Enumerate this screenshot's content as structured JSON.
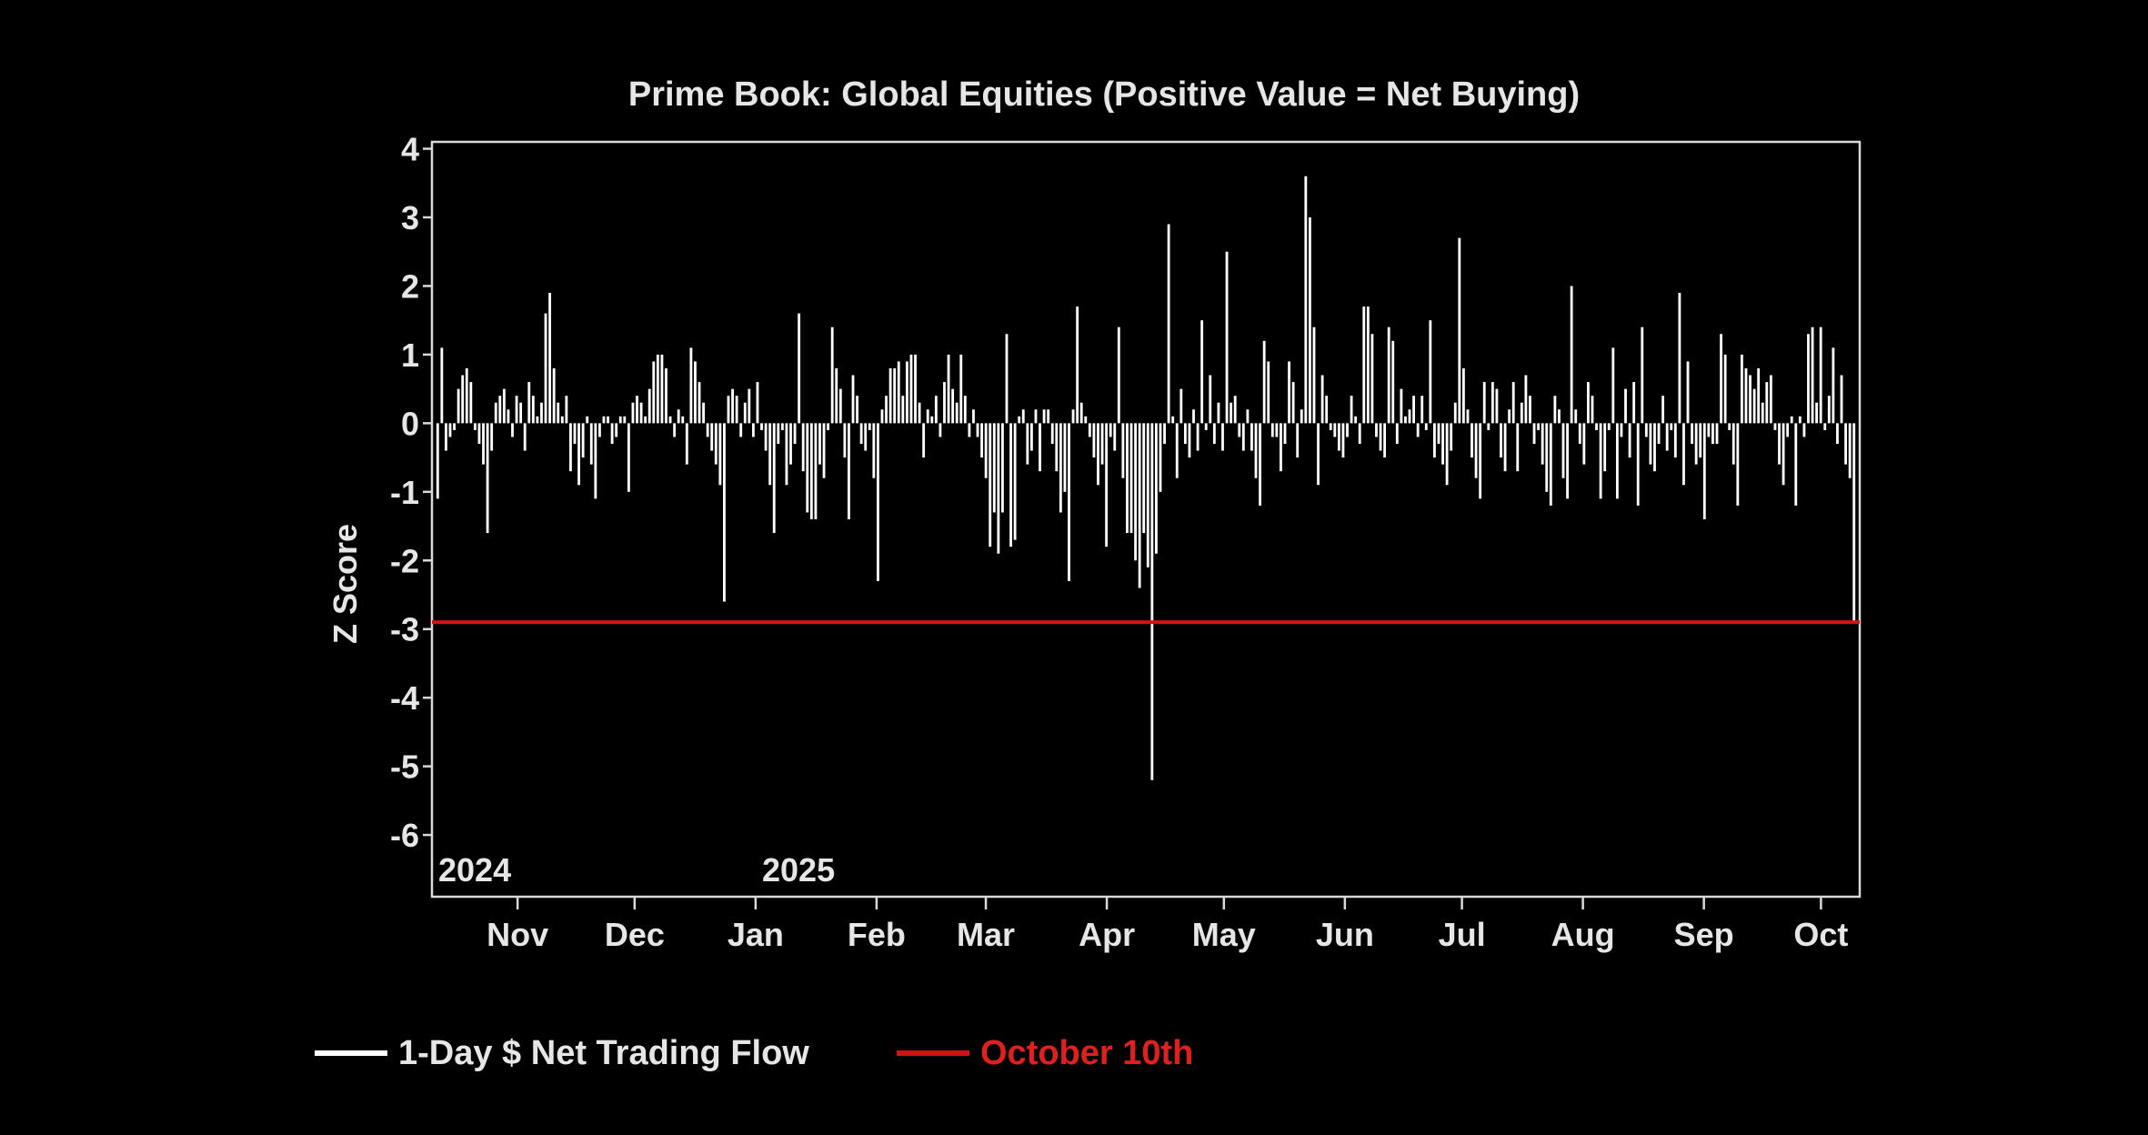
{
  "chart_data": {
    "type": "bar",
    "title": "Prime Book: Global Equities (Positive Value = Net Buying)",
    "ylabel": "Z Score",
    "xlabel": "",
    "ylim": [
      -6.9,
      4.1
    ],
    "yticks": [
      4,
      3,
      2,
      1,
      0,
      -1,
      -2,
      -3,
      -4,
      -5,
      -6
    ],
    "months": [
      "Nov",
      "Dec",
      "Jan",
      "Feb",
      "Mar",
      "Apr",
      "May",
      "Jun",
      "Jul",
      "Aug",
      "Sep",
      "Oct"
    ],
    "years": [
      "2024",
      "2025"
    ],
    "series": [
      {
        "name": "1-Day $ Net Trading Flow",
        "color": "#ffffff",
        "x_start": "2024-10-11",
        "x_end": "2025-10-10",
        "values": [
          -1.1,
          1.1,
          -0.4,
          -0.2,
          -0.1,
          0.5,
          0.7,
          0.8,
          0.6,
          -0.1,
          -0.3,
          -0.6,
          -1.6,
          -0.4,
          0.3,
          0.4,
          0.5,
          0.2,
          -0.2,
          0.4,
          0.3,
          -0.4,
          0.6,
          0.4,
          0.1,
          0.3,
          1.6,
          1.9,
          0.8,
          0.3,
          0.1,
          0.4,
          -0.7,
          -0.3,
          -0.9,
          -0.5,
          0.1,
          -0.6,
          -1.1,
          -0.2,
          0.1,
          0.1,
          -0.3,
          -0.2,
          0.1,
          0.1,
          -1.0,
          0.3,
          0.4,
          0.3,
          0.1,
          0.5,
          0.9,
          1.0,
          1.0,
          0.8,
          0.1,
          -0.2,
          0.2,
          0.1,
          -0.6,
          1.1,
          0.9,
          0.6,
          0.3,
          -0.2,
          -0.4,
          -0.6,
          -0.9,
          -2.6,
          0.4,
          0.5,
          0.4,
          -0.2,
          0.3,
          0.5,
          -0.2,
          0.6,
          -0.1,
          -0.4,
          -0.9,
          -1.6,
          -0.3,
          -0.1,
          -0.9,
          -0.6,
          -0.3,
          1.6,
          -0.7,
          -1.3,
          -1.4,
          -1.4,
          -0.6,
          -0.8,
          -0.1,
          1.4,
          0.8,
          0.5,
          -0.5,
          -1.4,
          0.7,
          0.4,
          -0.3,
          -0.4,
          -0.1,
          -0.8,
          -2.3,
          0.2,
          0.4,
          0.8,
          0.8,
          0.9,
          0.4,
          0.9,
          1.0,
          1.0,
          0.3,
          -0.5,
          0.2,
          0.1,
          0.4,
          -0.2,
          0.6,
          1.0,
          0.5,
          0.3,
          1.0,
          0.4,
          -0.2,
          0.2,
          -0.2,
          -0.5,
          -0.8,
          -1.8,
          -1.3,
          -1.9,
          -1.3,
          1.3,
          -1.8,
          -1.7,
          0.1,
          0.2,
          -0.6,
          -0.4,
          0.2,
          -0.7,
          0.2,
          0.2,
          -0.3,
          -0.7,
          -1.3,
          -1.0,
          -2.3,
          0.2,
          1.7,
          0.3,
          0.1,
          -0.2,
          -0.5,
          -0.9,
          -0.6,
          -1.8,
          -0.2,
          -0.4,
          1.4,
          -0.8,
          -1.6,
          -1.6,
          -2.0,
          -2.4,
          -1.6,
          -2.1,
          -5.2,
          -1.9,
          -1.0,
          -0.3,
          2.9,
          0.1,
          -0.8,
          0.5,
          -0.3,
          -0.5,
          0.2,
          -0.4,
          1.5,
          -0.1,
          0.7,
          -0.3,
          0.3,
          -0.4,
          2.5,
          0.3,
          0.4,
          -0.2,
          -0.4,
          0.2,
          -0.4,
          -0.8,
          -1.2,
          1.2,
          0.9,
          -0.2,
          -0.2,
          -0.7,
          -0.3,
          0.9,
          0.6,
          -0.5,
          0.2,
          3.6,
          3.0,
          1.4,
          -0.9,
          0.7,
          0.4,
          -0.1,
          -0.2,
          -0.4,
          -0.5,
          -0.2,
          0.4,
          0.1,
          -0.3,
          1.7,
          1.7,
          1.3,
          -0.2,
          -0.4,
          -0.5,
          1.4,
          1.2,
          -0.3,
          0.5,
          0.1,
          0.2,
          0.4,
          -0.2,
          0.4,
          -0.1,
          1.5,
          -0.5,
          -0.3,
          -0.6,
          -0.9,
          -0.4,
          0.3,
          2.7,
          0.8,
          0.2,
          -0.5,
          -0.8,
          -1.1,
          0.6,
          -0.1,
          0.6,
          0.5,
          -0.5,
          -0.7,
          0.2,
          0.6,
          -0.7,
          0.3,
          0.7,
          0.4,
          -0.3,
          -0.1,
          -0.6,
          -1.0,
          -1.2,
          0.4,
          0.2,
          -0.8,
          -1.1,
          2.0,
          0.2,
          -0.3,
          -0.6,
          0.6,
          0.4,
          -0.1,
          -1.1,
          -0.7,
          -0.1,
          1.1,
          -1.1,
          -0.2,
          0.5,
          -0.5,
          0.6,
          -1.2,
          1.4,
          -0.2,
          -0.6,
          -0.7,
          -0.3,
          0.4,
          -0.4,
          -0.1,
          -0.5,
          1.9,
          -0.9,
          0.9,
          -0.3,
          -0.6,
          -0.5,
          -1.4,
          -0.2,
          -0.3,
          -0.3,
          1.3,
          1.0,
          -0.1,
          -0.6,
          -1.2,
          1.0,
          0.8,
          0.7,
          0.5,
          0.8,
          0.3,
          0.6,
          0.7,
          -0.1,
          -0.6,
          -0.9,
          -0.2,
          0.1,
          -1.2,
          0.1,
          -0.2,
          1.3,
          1.4,
          0.3,
          1.4,
          -0.1,
          0.4,
          1.1,
          -0.3,
          0.7,
          -0.6,
          -0.8,
          -2.9
        ]
      },
      {
        "name": "October 10th",
        "color": "#d01414",
        "type": "hline",
        "value": -2.9
      }
    ]
  }
}
